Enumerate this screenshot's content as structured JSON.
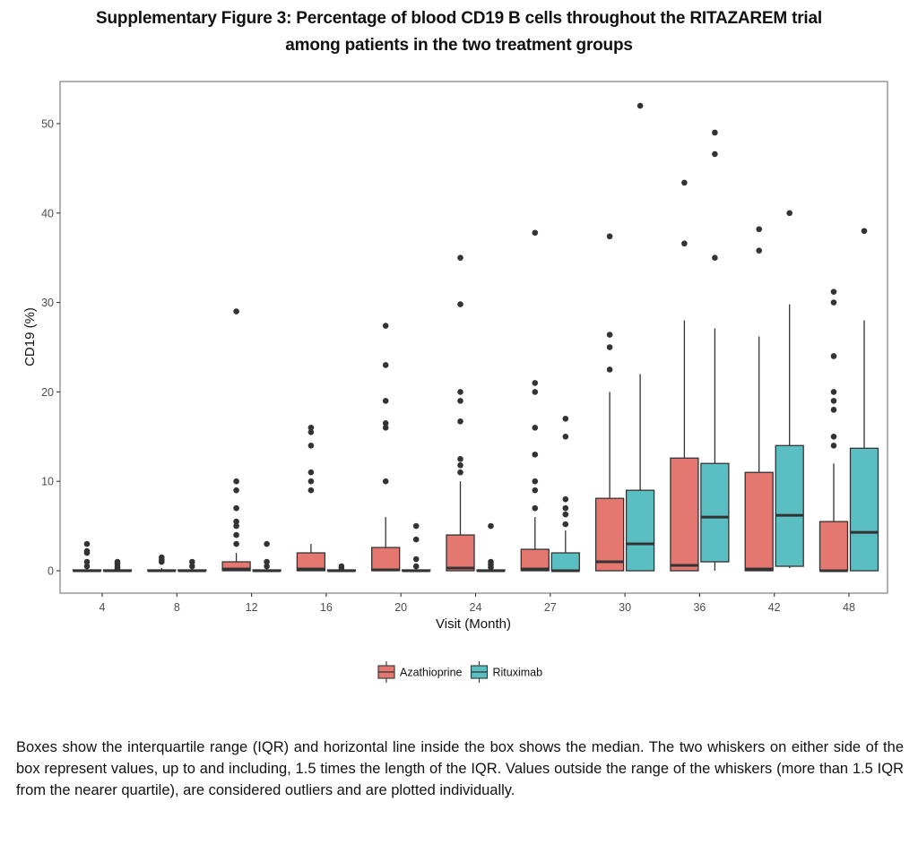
{
  "title": {
    "line1": "Supplementary Figure 3:  Percentage of blood CD19 B cells throughout the RITAZAREM trial",
    "line2": "among patients in the two treatment groups"
  },
  "caption": "Boxes show the interquartile range (IQR) and horizontal line inside the box shows the median. The two whiskers on either side of the box represent values, up to and including, 1.5 times the length of the IQR.  Values outside the range of the whiskers (more than 1.5 IQR from the nearer quartile), are considered outliers and are plotted individually.",
  "chart_data": {
    "type": "boxplot",
    "title": "Percentage of blood CD19 B cells throughout the RITAZAREM trial among patients in the two treatment groups",
    "xlabel": "Visit (Month)",
    "ylabel": "CD19 (%)",
    "ylim": [
      -2.5,
      52.5
    ],
    "yticks": [
      0,
      10,
      20,
      30,
      40,
      50
    ],
    "grid": false,
    "legend_position": "bottom",
    "categories": [
      "4",
      "8",
      "12",
      "16",
      "20",
      "24",
      "27",
      "30",
      "36",
      "42",
      "48"
    ],
    "colors": {
      "Azathioprine": "#E4776F",
      "Rituximab": "#5BBEC2",
      "outline": "#333333"
    },
    "series": [
      {
        "name": "Azathioprine",
        "boxes": [
          {
            "visit": "4",
            "min": 0,
            "q1": 0,
            "median": 0,
            "q3": 0.1,
            "max": 0.2,
            "outliers": [
              0.5,
              1.0,
              2.0,
              2.2,
              3.0
            ]
          },
          {
            "visit": "8",
            "min": 0,
            "q1": 0,
            "median": 0,
            "q3": 0.1,
            "max": 0.3,
            "outliers": [
              1.0,
              1.2,
              1.5
            ]
          },
          {
            "visit": "12",
            "min": 0,
            "q1": 0,
            "median": 0.2,
            "q3": 1.0,
            "max": 2.0,
            "outliers": [
              3.0,
              4.0,
              5.0,
              5.5,
              7.0,
              9.0,
              10.0,
              29.0
            ]
          },
          {
            "visit": "16",
            "min": 0,
            "q1": 0,
            "median": 0.2,
            "q3": 2.0,
            "max": 3.0,
            "outliers": [
              9.0,
              10.0,
              11.0,
              14.0,
              15.5,
              16.0
            ]
          },
          {
            "visit": "20",
            "min": 0,
            "q1": 0,
            "median": 0.1,
            "q3": 2.6,
            "max": 6.0,
            "outliers": [
              10.0,
              16.0,
              16.5,
              19.0,
              23.0,
              27.4
            ]
          },
          {
            "visit": "24",
            "min": 0,
            "q1": 0,
            "median": 0.3,
            "q3": 4.0,
            "max": 10.0,
            "outliers": [
              11.0,
              11.8,
              12.5,
              16.7,
              19.0,
              20.0,
              29.8,
              35.0
            ]
          },
          {
            "visit": "27",
            "min": 0,
            "q1": 0,
            "median": 0.2,
            "q3": 2.4,
            "max": 6.0,
            "outliers": [
              7.0,
              9.0,
              10.0,
              13.0,
              16.0,
              20.0,
              21.0,
              37.8
            ]
          },
          {
            "visit": "30",
            "min": 0,
            "q1": 0,
            "median": 1.0,
            "q3": 8.1,
            "max": 20.0,
            "outliers": [
              22.5,
              25.0,
              26.4,
              37.4
            ]
          },
          {
            "visit": "36",
            "min": 0,
            "q1": 0,
            "median": 0.6,
            "q3": 12.6,
            "max": 28.0,
            "outliers": [
              36.6,
              43.4
            ]
          },
          {
            "visit": "42",
            "min": 0,
            "q1": 0,
            "median": 0.2,
            "q3": 11.0,
            "max": 26.2,
            "outliers": [
              35.8,
              38.2
            ]
          },
          {
            "visit": "48",
            "min": 0,
            "q1": 0,
            "median": 0,
            "q3": 5.5,
            "max": 12.0,
            "outliers": [
              14.0,
              15.0,
              18.0,
              19.0,
              20.0,
              24.0,
              30.0,
              31.2
            ]
          }
        ]
      },
      {
        "name": "Rituximab",
        "boxes": [
          {
            "visit": "4",
            "min": 0,
            "q1": 0,
            "median": 0,
            "q3": 0.1,
            "max": 0.2,
            "outliers": [
              0.3,
              0.5,
              0.8,
              1.0
            ]
          },
          {
            "visit": "8",
            "min": 0,
            "q1": 0,
            "median": 0,
            "q3": 0.1,
            "max": 0.2,
            "outliers": [
              0.5,
              1.0
            ]
          },
          {
            "visit": "12",
            "min": 0,
            "q1": 0,
            "median": 0,
            "q3": 0.1,
            "max": 0.2,
            "outliers": [
              0.5,
              1.0,
              3.0
            ]
          },
          {
            "visit": "16",
            "min": 0,
            "q1": 0,
            "median": 0,
            "q3": 0.1,
            "max": 0.2,
            "outliers": [
              0.3,
              0.5
            ]
          },
          {
            "visit": "20",
            "min": 0,
            "q1": 0,
            "median": 0,
            "q3": 0.1,
            "max": 0.2,
            "outliers": [
              0.5,
              1.3,
              3.5,
              5.0
            ]
          },
          {
            "visit": "24",
            "min": 0,
            "q1": 0,
            "median": 0,
            "q3": 0.1,
            "max": 0.2,
            "outliers": [
              0.4,
              0.7,
              1.0,
              5.0
            ]
          },
          {
            "visit": "27",
            "min": 0,
            "q1": 0,
            "median": 0,
            "q3": 2.0,
            "max": 4.5,
            "outliers": [
              5.2,
              6.3,
              7.0,
              8.0,
              15.0,
              17.0
            ]
          },
          {
            "visit": "30",
            "min": 0,
            "q1": 0,
            "median": 3.0,
            "q3": 9.0,
            "max": 22.0,
            "outliers": [
              52.0
            ]
          },
          {
            "visit": "36",
            "min": 0,
            "q1": 1.0,
            "median": 6.0,
            "q3": 12.0,
            "max": 27.1,
            "outliers": [
              35.0,
              46.6,
              49.0
            ]
          },
          {
            "visit": "42",
            "min": 0.3,
            "q1": 0.5,
            "median": 6.2,
            "q3": 14.0,
            "max": 29.8,
            "outliers": [
              40.0
            ]
          },
          {
            "visit": "48",
            "min": 0,
            "q1": 0,
            "median": 4.3,
            "q3": 13.7,
            "max": 28.0,
            "outliers": [
              38.0
            ]
          }
        ]
      }
    ]
  }
}
